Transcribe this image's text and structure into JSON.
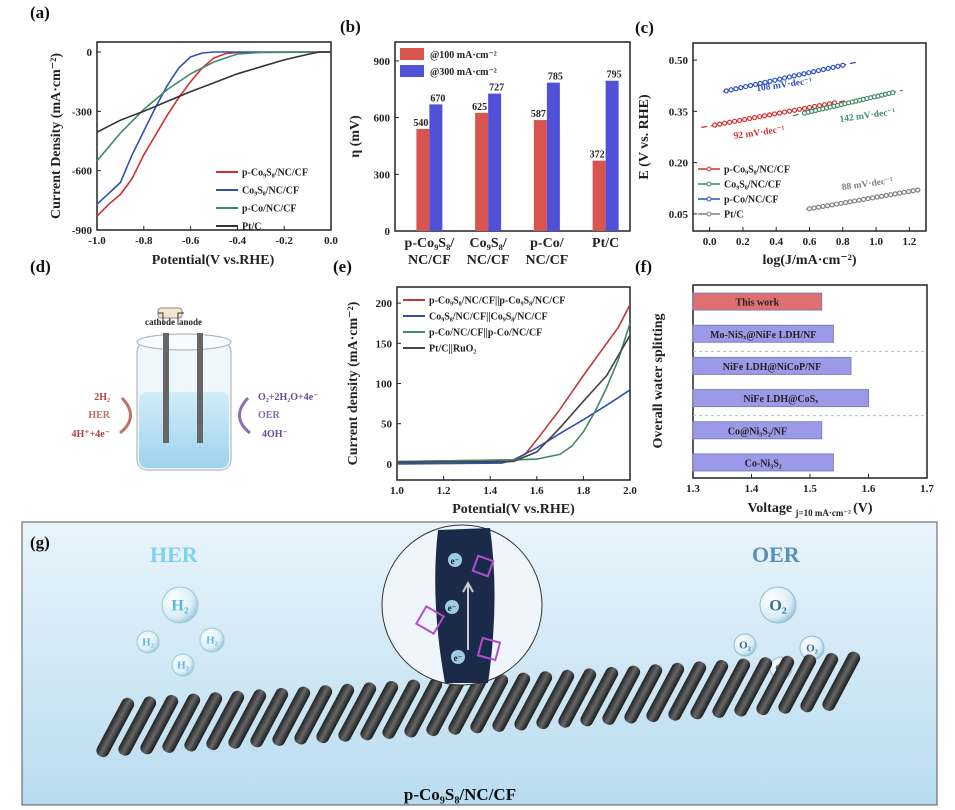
{
  "panels": {
    "a": "(a)",
    "b": "(b)",
    "c": "(c)",
    "d": "(d)",
    "e": "(e)",
    "f": "(f)",
    "g": "(g)"
  },
  "chart_data": [
    {
      "id": "a",
      "type": "line",
      "xlabel": "Potential(V vs.RHE)",
      "ylabel": "Current Density (mA·cm⁻²)",
      "xlim": [
        -1.0,
        0.0
      ],
      "ylim": [
        -900,
        0
      ],
      "xticks": [
        "-1.0",
        "-0.8",
        "-0.6",
        "-0.4",
        "-0.2",
        "0.0"
      ],
      "xtickvals": [
        -1,
        -0.8,
        -0.6,
        -0.4,
        -0.2,
        0
      ],
      "yticks": [
        "0",
        "-300",
        "-600",
        "-900"
      ],
      "ytickvals": [
        0,
        -300,
        -600,
        -900
      ],
      "legend_position": "bottom-right",
      "series": [
        {
          "name": "p-Co₉S₈/NC/CF",
          "color": "#d03030",
          "points": [
            [
              -1.0,
              -830
            ],
            [
              -0.95,
              -770
            ],
            [
              -0.9,
              -720
            ],
            [
              -0.85,
              -640
            ],
            [
              -0.8,
              -520
            ],
            [
              -0.75,
              -420
            ],
            [
              -0.7,
              -320
            ],
            [
              -0.65,
              -230
            ],
            [
              -0.6,
              -150
            ],
            [
              -0.55,
              -80
            ],
            [
              -0.5,
              -30
            ],
            [
              -0.45,
              -8
            ],
            [
              -0.4,
              -2
            ],
            [
              0,
              0
            ]
          ]
        },
        {
          "name": "Co₉S₈/NC/CF",
          "color": "#3050b0",
          "points": [
            [
              -1.0,
              -770
            ],
            [
              -0.9,
              -660
            ],
            [
              -0.85,
              -520
            ],
            [
              -0.8,
              -400
            ],
            [
              -0.75,
              -280
            ],
            [
              -0.7,
              -170
            ],
            [
              -0.65,
              -80
            ],
            [
              -0.6,
              -25
            ],
            [
              -0.55,
              -5
            ],
            [
              -0.5,
              0
            ],
            [
              0,
              0
            ]
          ]
        },
        {
          "name": "p-Co/NC/CF",
          "color": "#3f8a68",
          "points": [
            [
              -1.0,
              -550
            ],
            [
              -0.9,
              -410
            ],
            [
              -0.8,
              -290
            ],
            [
              -0.7,
              -190
            ],
            [
              -0.6,
              -110
            ],
            [
              -0.5,
              -50
            ],
            [
              -0.4,
              -10
            ],
            [
              -0.3,
              -2
            ],
            [
              0,
              0
            ]
          ]
        },
        {
          "name": "Pt/C",
          "color": "#333333",
          "points": [
            [
              -1.0,
              -405
            ],
            [
              -0.9,
              -345
            ],
            [
              -0.8,
              -300
            ],
            [
              -0.7,
              -250
            ],
            [
              -0.6,
              -200
            ],
            [
              -0.5,
              -155
            ],
            [
              -0.4,
              -110
            ],
            [
              -0.3,
              -75
            ],
            [
              -0.2,
              -40
            ],
            [
              -0.1,
              -12
            ],
            [
              -0.05,
              0
            ],
            [
              0,
              0
            ]
          ]
        }
      ]
    },
    {
      "id": "b",
      "type": "bar",
      "ylabel": "η (mV)",
      "ylim": [
        0,
        1000
      ],
      "yticks": [
        "0",
        "300",
        "600",
        "900"
      ],
      "ytickvals": [
        0,
        300,
        600,
        900
      ],
      "categories": [
        [
          "p-Co₉S₈/",
          "NC/CF"
        ],
        [
          "Co₉S₈/",
          "NC/CF"
        ],
        [
          "p-Co/",
          "NC/CF"
        ],
        [
          "Pt/C",
          ""
        ]
      ],
      "legend_position": "top-left",
      "series": [
        {
          "name": "@100 mA·cm⁻²",
          "color": "#d9534f",
          "values": [
            540,
            625,
            587,
            372
          ]
        },
        {
          "name": "@300 mA·cm⁻²",
          "color": "#5050d8",
          "values": [
            670,
            727,
            785,
            795
          ]
        }
      ]
    },
    {
      "id": "c",
      "type": "scatter",
      "xlabel": "log(J/mA·cm⁻²)",
      "ylabel": "E (V vs. RHE)",
      "xlim": [
        -0.1,
        1.3
      ],
      "ylim": [
        0.0,
        0.55
      ],
      "xticks": [
        "0.0",
        "0.2",
        "0.4",
        "0.6",
        "0.8",
        "1.0",
        "1.2"
      ],
      "xtickvals": [
        0,
        0.2,
        0.4,
        0.6,
        0.8,
        1.0,
        1.2
      ],
      "yticks": [
        "0.05",
        "0.20",
        "0.35",
        "0.50"
      ],
      "ytickvals": [
        0.05,
        0.2,
        0.35,
        0.5
      ],
      "legend_position": "bottom-left",
      "series": [
        {
          "name": "p-Co₉S₈/NC/CF",
          "color": "#d03030",
          "x_range": [
            0.03,
            0.75
          ],
          "y_range": [
            0.31,
            0.375
          ],
          "fit_range": [
            -0.05,
            0.82
          ],
          "slope_label": "92 mV·dec⁻¹"
        },
        {
          "name": "Co₉S₈/NC/CF",
          "color": "#3f8a68",
          "x_range": [
            0.57,
            1.1
          ],
          "y_range": [
            0.345,
            0.405
          ],
          "fit_range": [
            0.5,
            1.16
          ],
          "slope_label": "142 mV·dec⁻¹"
        },
        {
          "name": "p-Co/NC/CF",
          "color": "#3050c0",
          "x_range": [
            0.1,
            0.8
          ],
          "y_range": [
            0.41,
            0.485
          ],
          "fit_range": [
            0.08,
            0.9
          ],
          "slope_label": "108 mV·dec⁻¹"
        },
        {
          "name": "Pt/C",
          "color": "#808080",
          "x_range": [
            0.6,
            1.25
          ],
          "y_range": [
            0.065,
            0.12
          ],
          "fit_range": [
            0.58,
            1.28
          ],
          "slope_label": "88 mV·dec⁻¹"
        }
      ]
    },
    {
      "id": "e",
      "type": "line",
      "xlabel": "Potential(V vs.RHE)",
      "ylabel": "Current density (mA·cm⁻²)",
      "xlim": [
        1.0,
        2.0
      ],
      "ylim": [
        -20,
        220
      ],
      "xticks": [
        "1.0",
        "1.2",
        "1.4",
        "1.6",
        "1.8",
        "2.0"
      ],
      "xtickvals": [
        1.0,
        1.2,
        1.4,
        1.6,
        1.8,
        2.0
      ],
      "yticks": [
        "0",
        "50",
        "100",
        "150",
        "200"
      ],
      "ytickvals": [
        0,
        50,
        100,
        150,
        200
      ],
      "legend_position": "top-left",
      "series": [
        {
          "name": "p-Co₉S₈/NC/CF||p-Co₉S₈/NC/CF",
          "color": "#c03838",
          "points": [
            [
              1.0,
              3
            ],
            [
              1.5,
              5
            ],
            [
              1.55,
              12
            ],
            [
              1.6,
              30
            ],
            [
              1.7,
              68
            ],
            [
              1.8,
              110
            ],
            [
              1.9,
              150
            ],
            [
              1.95,
              170
            ],
            [
              2.0,
              198
            ]
          ]
        },
        {
          "name": "Co₉S₈/NC/CF||Co₉S₈/NC/CF",
          "color": "#3050b0",
          "points": [
            [
              1.0,
              0
            ],
            [
              1.45,
              1
            ],
            [
              1.5,
              5
            ],
            [
              1.6,
              20
            ],
            [
              1.7,
              38
            ],
            [
              1.8,
              55
            ],
            [
              1.9,
              73
            ],
            [
              2.0,
              92
            ]
          ]
        },
        {
          "name": "p-Co/NC/CF||p-Co/NC/CF",
          "color": "#3f8a68",
          "points": [
            [
              1.0,
              3
            ],
            [
              1.5,
              5
            ],
            [
              1.6,
              6
            ],
            [
              1.7,
              12
            ],
            [
              1.75,
              22
            ],
            [
              1.8,
              40
            ],
            [
              1.85,
              65
            ],
            [
              1.9,
              95
            ],
            [
              1.95,
              130
            ],
            [
              2.0,
              175
            ]
          ]
        },
        {
          "name": "Pt/C||RuO₂",
          "color": "#444444",
          "points": [
            [
              1.0,
              2
            ],
            [
              1.5,
              3
            ],
            [
              1.6,
              15
            ],
            [
              1.7,
              45
            ],
            [
              1.8,
              78
            ],
            [
              1.9,
              110
            ],
            [
              2.0,
              160
            ]
          ]
        }
      ]
    },
    {
      "id": "f",
      "type": "bar",
      "orientation": "horizontal",
      "xlabel": "Voltage",
      "xlabel_sub": "j=10 mA·cm⁻²",
      "xlabel_unit": "(V)",
      "ylabel": "Overall water splitting",
      "xlim": [
        1.3,
        1.7
      ],
      "xticks": [
        "1.3",
        "1.4",
        "1.5",
        "1.6",
        "1.7"
      ],
      "xtickvals": [
        1.3,
        1.4,
        1.5,
        1.6,
        1.7
      ],
      "categories": [
        "This work",
        "Mo-NiSₓ@NiFe LDH/NF",
        "NiFe LDH@NiCoP/NF",
        "NiFe LDH@CoSₓ",
        "Co@Ni₃S₂/NF",
        "Co-Ni₃S₂"
      ],
      "values": [
        1.52,
        1.54,
        1.57,
        1.6,
        1.52,
        1.54
      ],
      "colors": [
        "#e07070",
        "#9a9ae8",
        "#9a9ae8",
        "#9a9ae8",
        "#9a9ae8",
        "#9a9ae8"
      ]
    }
  ],
  "cell_diagram": {
    "cathode": "cathode",
    "anode": "anode",
    "her_top": "2H₂",
    "her": "HER",
    "her_bottom": "4H⁺+4e⁻",
    "oer_top": "O₂+2H₂O+4e⁻",
    "oer": "OER",
    "oer_bottom": "4OH⁻"
  },
  "illustration": {
    "her": "HER",
    "oer": "OER",
    "h2": "H₂",
    "o2": "O₂",
    "electron": "e⁻",
    "material": "p-Co₉S₈/NC/CF"
  }
}
